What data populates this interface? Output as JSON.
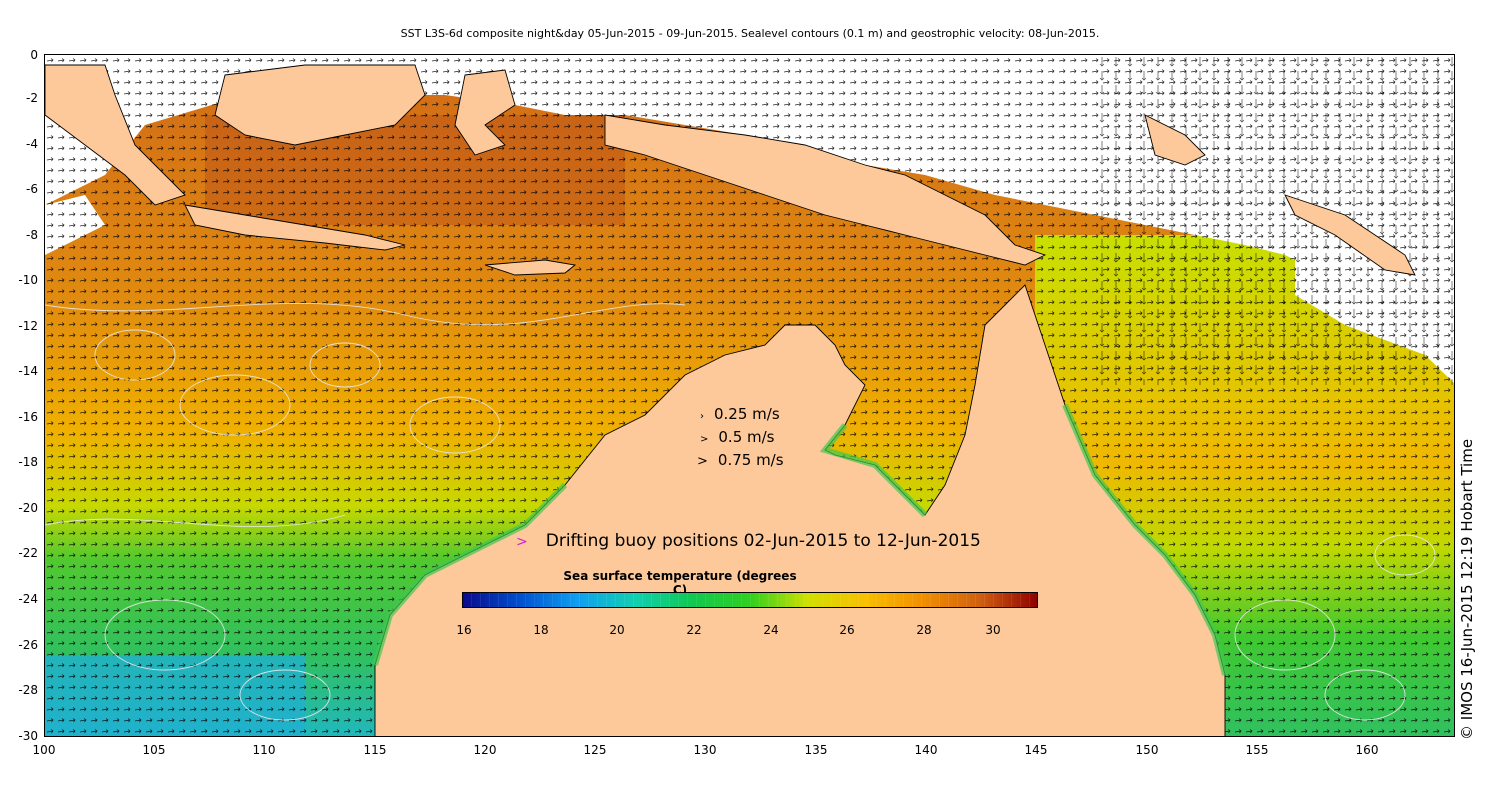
{
  "title": "SST L3S-6d composite night&day 05-Jun-2015 - 09-Jun-2015. Sealevel contours (0.1 m) and geostrophic velocity: 08-Jun-2015.",
  "axes": {
    "y_ticks": [
      "0",
      "-2",
      "-4",
      "-6",
      "-8",
      "-10",
      "-12",
      "-14",
      "-16",
      "-18",
      "-20",
      "-22",
      "-24",
      "-26",
      "-28",
      "-30"
    ],
    "x_ticks": [
      "100",
      "105",
      "110",
      "115",
      "120",
      "125",
      "130",
      "135",
      "140",
      "145",
      "150",
      "155",
      "160"
    ],
    "lon_range": [
      100,
      164
    ],
    "lat_range": [
      -30,
      0
    ]
  },
  "legend": {
    "speeds": [
      {
        "label": "0.25 m/s",
        "value": 0.25
      },
      {
        "label": "0.5 m/s",
        "value": 0.5
      },
      {
        "label": "0.75 m/s",
        "value": 0.75
      }
    ],
    "buoy_marker": ">",
    "buoy_label": "Drifting buoy positions 02-Jun-2015 to 12-Jun-2015",
    "buoy_color": "#d020d0"
  },
  "colorbar": {
    "title": "Sea surface temperature (degrees C)",
    "ticks": [
      "16",
      "18",
      "20",
      "22",
      "24",
      "26",
      "28",
      "30"
    ],
    "range": [
      16,
      31
    ],
    "colors": [
      "#0a0a8c",
      "#0050d0",
      "#10a0f0",
      "#10d0b0",
      "#10c850",
      "#30d020",
      "#d0e000",
      "#f8c000",
      "#f09000",
      "#d06010",
      "#900000"
    ]
  },
  "copyright": "© IMOS 16-Jun-2015 12:19 Hobart Time",
  "colors": {
    "land": "#fdc99a",
    "no_data": "#ffffff",
    "coastline": "#000000",
    "contour": "#e8e8e8"
  }
}
